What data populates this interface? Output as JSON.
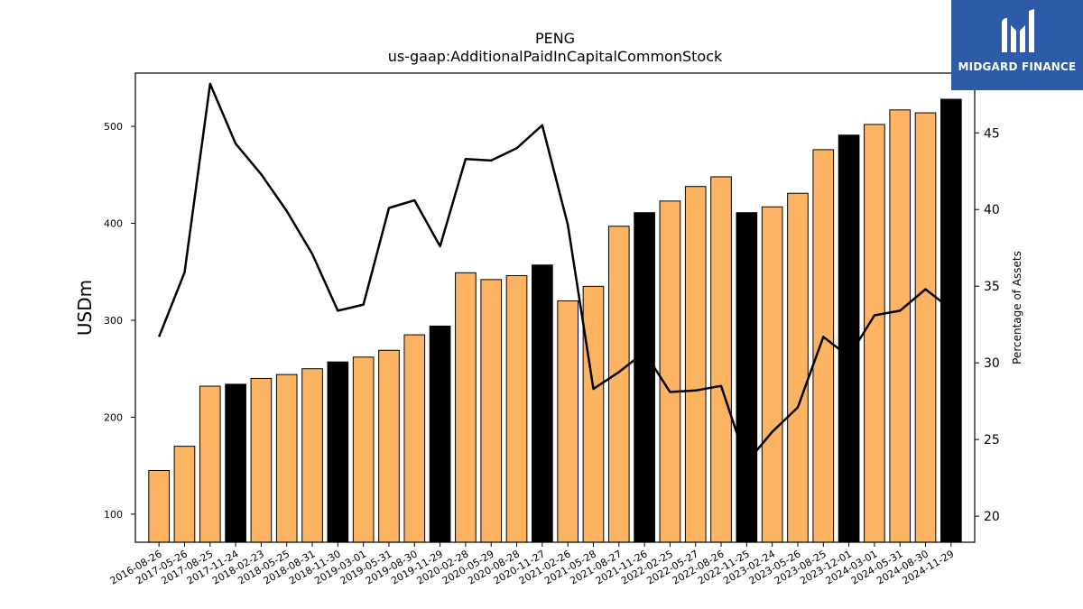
{
  "chart_data": {
    "type": "bar",
    "title": "PENG",
    "subtitle": "us-gaap:AdditionalPaidInCapitalCommonStock",
    "ylabel": "USDm",
    "y2label": "Percentage of Assets",
    "ylim": [
      71,
      555
    ],
    "y2lim": [
      18.3,
      48.9
    ],
    "yticks": [
      100,
      200,
      300,
      400,
      500
    ],
    "y2ticks": [
      20,
      25,
      30,
      35,
      40,
      45
    ],
    "categories": [
      "2016-08-26",
      "2017-05-26",
      "2017-08-25",
      "2017-11-24",
      "2018-02-23",
      "2018-05-25",
      "2018-08-31",
      "2018-11-30",
      "2019-03-01",
      "2019-05-31",
      "2019-08-30",
      "2019-11-29",
      "2020-02-28",
      "2020-05-29",
      "2020-08-28",
      "2020-11-27",
      "2021-02-26",
      "2021-05-28",
      "2021-08-27",
      "2021-11-26",
      "2022-02-25",
      "2022-05-27",
      "2022-08-26",
      "2022-11-25",
      "2023-02-24",
      "2023-05-26",
      "2023-08-25",
      "2023-12-01",
      "2024-03-01",
      "2024-05-31",
      "2024-08-30",
      "2024-11-29"
    ],
    "series": [
      {
        "type": "bar",
        "values": [
          145,
          170,
          232,
          234,
          240,
          244,
          250,
          257,
          262,
          269,
          285,
          294,
          349,
          342,
          346,
          357,
          320,
          335,
          397,
          411,
          423,
          438,
          448,
          411,
          417,
          431,
          476,
          491,
          502,
          517,
          514,
          528
        ],
        "highlight": [
          false,
          false,
          false,
          true,
          false,
          false,
          false,
          true,
          false,
          false,
          false,
          true,
          false,
          false,
          false,
          true,
          false,
          false,
          false,
          true,
          false,
          false,
          false,
          true,
          false,
          false,
          false,
          true,
          false,
          false,
          false,
          true
        ],
        "color": "#fdb462",
        "highlight_color": "#000000"
      },
      {
        "type": "line",
        "axis": "right",
        "values": [
          31.7,
          35.9,
          48.2,
          44.3,
          42.3,
          39.9,
          37.1,
          33.4,
          33.8,
          40.1,
          40.6,
          37.6,
          43.3,
          43.2,
          44.0,
          45.5,
          39.0,
          28.3,
          29.4,
          30.7,
          28.1,
          28.2,
          28.5,
          23.5,
          25.5,
          27.1,
          31.7,
          30.4,
          33.1,
          33.4,
          34.8,
          33.5
        ],
        "color": "#000000"
      }
    ],
    "grid": false
  },
  "logo": {
    "text": "MIDGARD FINANCE"
  }
}
